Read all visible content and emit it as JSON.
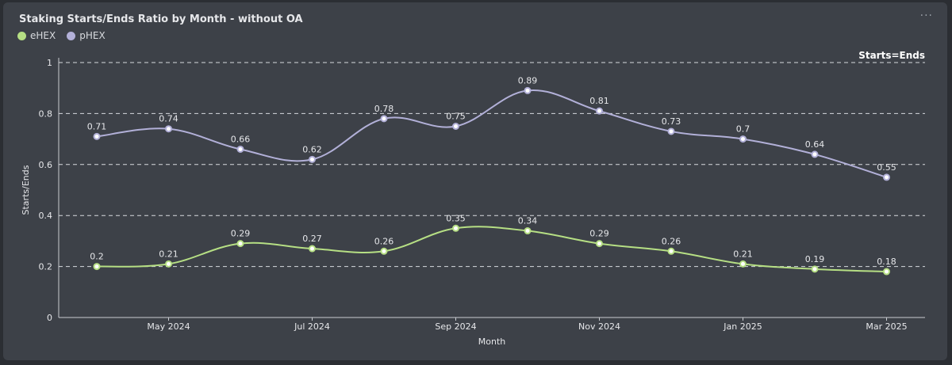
{
  "title": "Staking Starts/Ends Ratio by Month - without OA",
  "menu_label": "···",
  "colors": {
    "ehex": "#b6df84",
    "phex": "#b2b0d8",
    "grid": "#d8dade",
    "text": "#e6e7ea"
  },
  "chart_data": {
    "type": "line",
    "title": "Staking Starts/Ends Ratio by Month - without OA",
    "xlabel": "Month",
    "ylabel": "Starts/Ends",
    "ylim": [
      0,
      1
    ],
    "yticks": [
      "0",
      "0.2",
      "0.4",
      "0.6",
      "0.8",
      "1"
    ],
    "x": [
      "2024-04",
      "2024-05",
      "2024-06",
      "2024-07",
      "2024-08",
      "2024-09",
      "2024-10",
      "2024-11",
      "2024-12",
      "2025-01",
      "2025-02",
      "2025-03"
    ],
    "xtick_labels": [
      "May 2024",
      "Jul 2024",
      "Sep 2024",
      "Nov 2024",
      "Jan 2025",
      "Mar 2025"
    ],
    "series": [
      {
        "name": "eHEX",
        "values": [
          0.2,
          0.21,
          0.29,
          0.27,
          0.26,
          0.35,
          0.34,
          0.29,
          0.26,
          0.21,
          0.19,
          0.18
        ]
      },
      {
        "name": "pHEX",
        "values": [
          0.71,
          0.74,
          0.66,
          0.62,
          0.78,
          0.75,
          0.89,
          0.81,
          0.73,
          0.7,
          0.64,
          0.55
        ]
      }
    ],
    "reference_line": {
      "value": 1,
      "label": "Starts=Ends"
    },
    "grid": true,
    "legend": "top-left"
  }
}
